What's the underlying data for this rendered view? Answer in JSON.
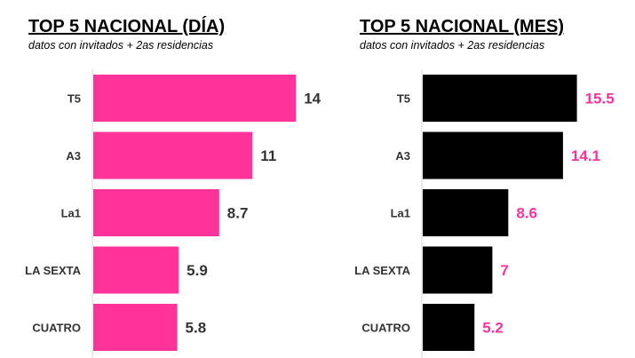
{
  "chart_data": [
    {
      "type": "bar",
      "orientation": "horizontal",
      "title": "TOP 5 NACIONAL (DÍA)",
      "subtitle": "datos con invitados + 2as residencias",
      "categories": [
        "T5",
        "A3",
        "La1",
        "LA SEXTA",
        "CUATRO"
      ],
      "values": [
        14,
        11,
        8.7,
        5.9,
        5.8
      ],
      "xlim": [
        0,
        18
      ],
      "grid": false,
      "bar_color": "#ff3399",
      "value_label_color": "#333333"
    },
    {
      "type": "bar",
      "orientation": "horizontal",
      "title": "TOP 5 NACIONAL (MES)",
      "subtitle": "datos con invitados + 2as residencias",
      "categories": [
        "T5",
        "A3",
        "La1",
        "LA SEXTA",
        "CUATRO"
      ],
      "values": [
        15.5,
        14.1,
        8.6,
        7,
        5.2
      ],
      "xlim": [
        0,
        18
      ],
      "grid": false,
      "bar_color": "#000000",
      "value_label_color": "#ff3399"
    }
  ]
}
